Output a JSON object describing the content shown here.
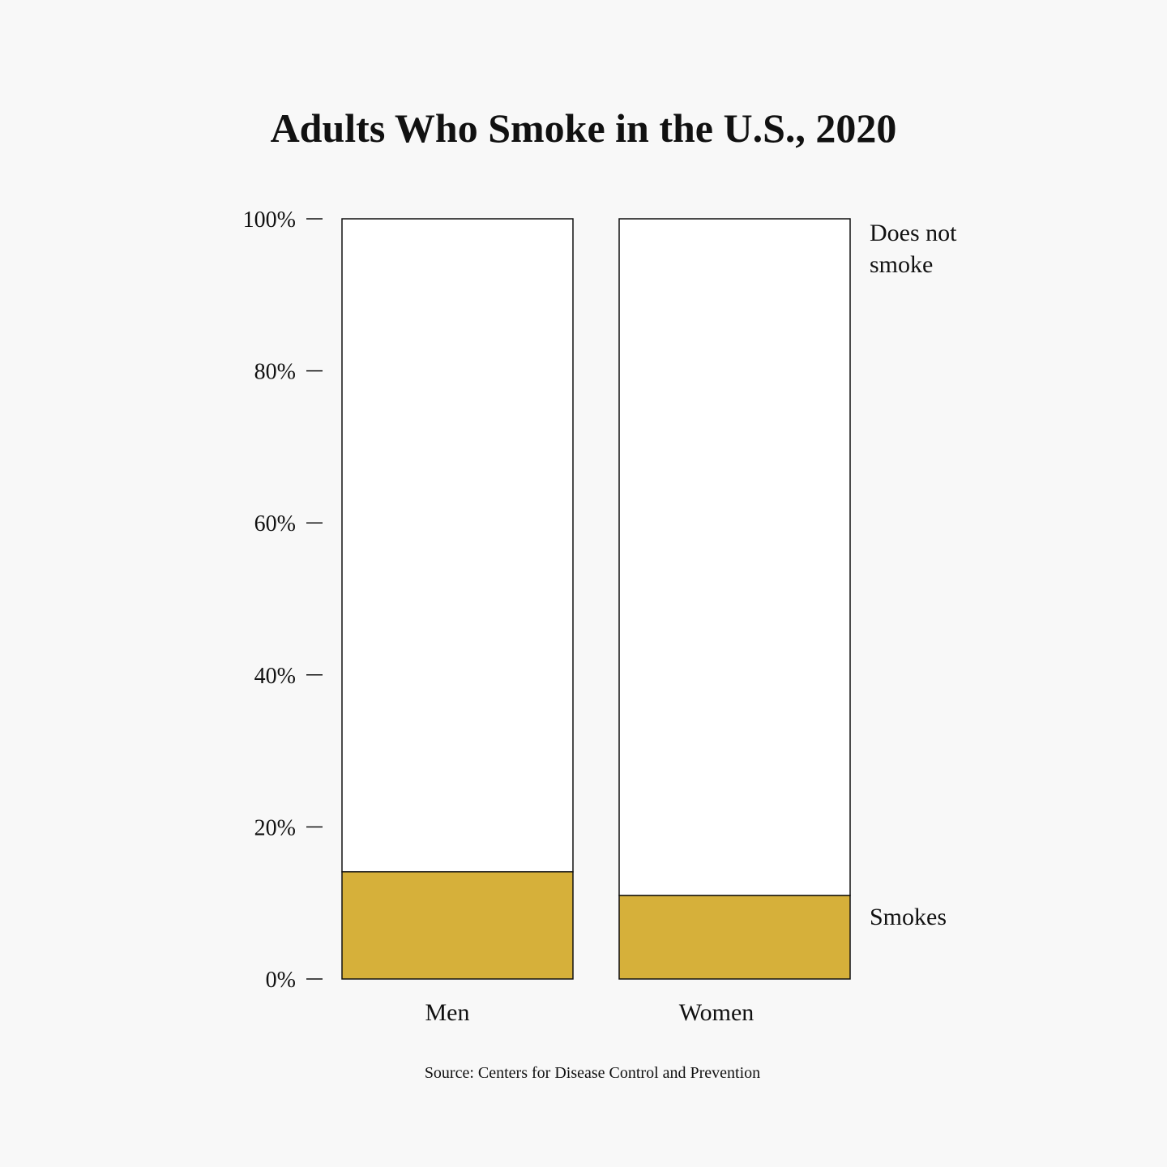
{
  "chart_data": {
    "type": "bar",
    "stacked": true,
    "normalized": true,
    "title": "Adults Who Smoke in the U.S., 2020",
    "categories": [
      "Men",
      "Women"
    ],
    "series": [
      {
        "name": "Smokes",
        "values": [
          14.1,
          11.0
        ],
        "color": "#d6b03a"
      },
      {
        "name": "Does not smoke",
        "values": [
          85.9,
          89.0
        ],
        "color": "#ffffff"
      }
    ],
    "legend_labels": {
      "does_not_smoke_line1": "Does not",
      "does_not_smoke_line2": "smoke",
      "smokes": "Smokes"
    },
    "y_ticks": [
      "0%",
      "20%",
      "40%",
      "60%",
      "80%",
      "100%"
    ],
    "y_tick_values": [
      0,
      20,
      40,
      60,
      80,
      100
    ],
    "ylim": [
      0,
      100
    ],
    "grid": false,
    "legend_position": "right",
    "source": "Source: Centers for Disease Control and Prevention"
  }
}
